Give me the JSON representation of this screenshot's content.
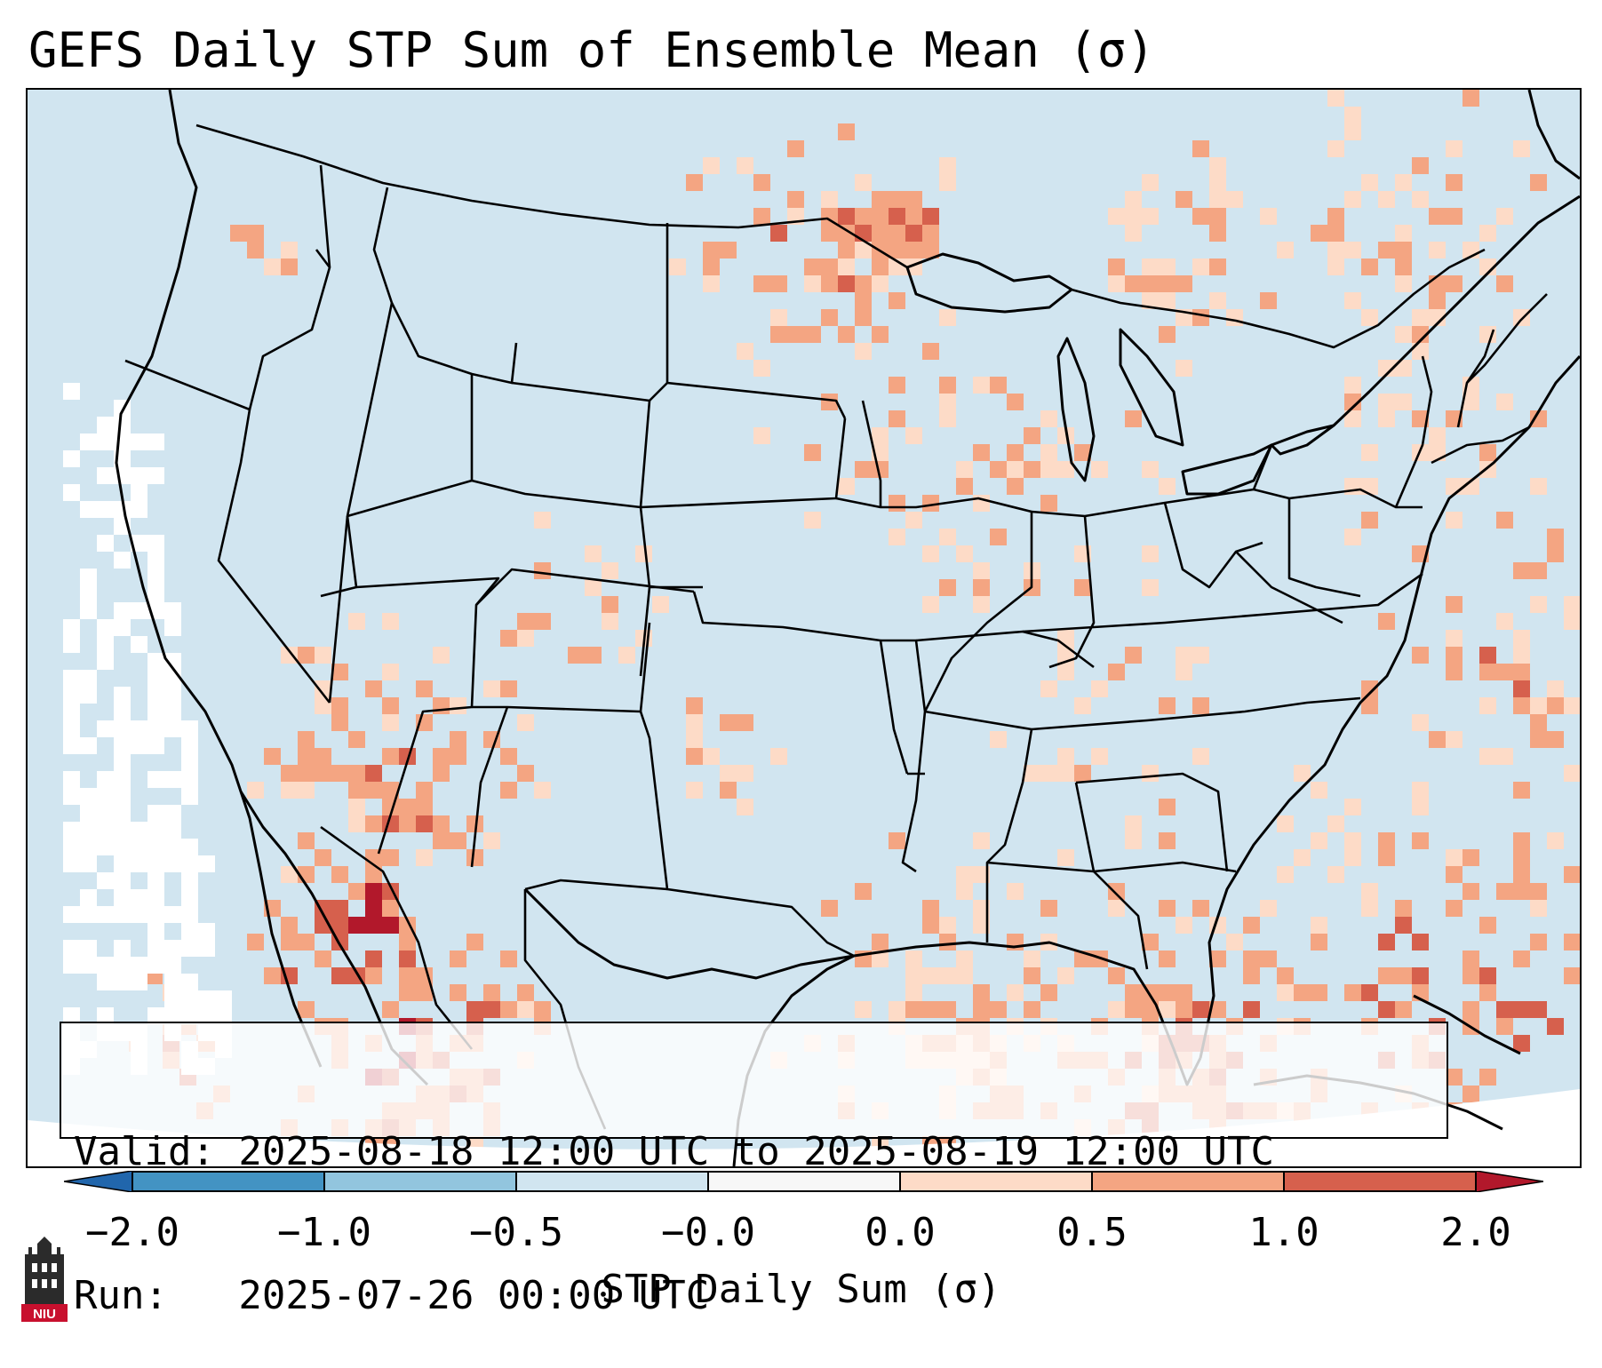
{
  "title": "GEFS Daily STP Sum of Ensemble Mean (σ)",
  "info": {
    "valid_line": "Valid: 2025-08-18 12:00 UTC to 2025-08-19 12:00 UTC",
    "run_line": "Run:   2025-07-26 00:00 UTC"
  },
  "colorbar": {
    "label": "STP Daily Sum (σ)",
    "ticks": [
      "−2.0",
      "−1.0",
      "−0.5",
      "−0.0",
      "0.0",
      "0.5",
      "1.0",
      "2.0"
    ],
    "colors": {
      "below_min": "#2166ac",
      "bin_neg2_neg1": "#4393c3",
      "bin_neg1_neg05": "#92c5de",
      "bin_neg05_0": "#d1e5f0",
      "bin_zero": "#f7f7f7",
      "bin_0_05": "#fddbc7",
      "bin_05_1": "#f4a582",
      "bin_1_2": "#d6604d",
      "above_max": "#b2182b"
    }
  },
  "logo": {
    "text": "NIU",
    "color": "#c8102e"
  },
  "map": {
    "projection": "Lambert Conformal, CONUS domain",
    "ocean_color": "#d1e5f0",
    "missing_color": "#ffffff",
    "line_color": "#000000",
    "regions_enhanced": [
      "Northern Plains / Dakotas",
      "Upper Midwest / Great Lakes",
      "Southwest US / Northwest Mexico",
      "Gulf of Mexico",
      "Western Atlantic",
      "Northern Mexico / Sierra Madre"
    ]
  }
}
